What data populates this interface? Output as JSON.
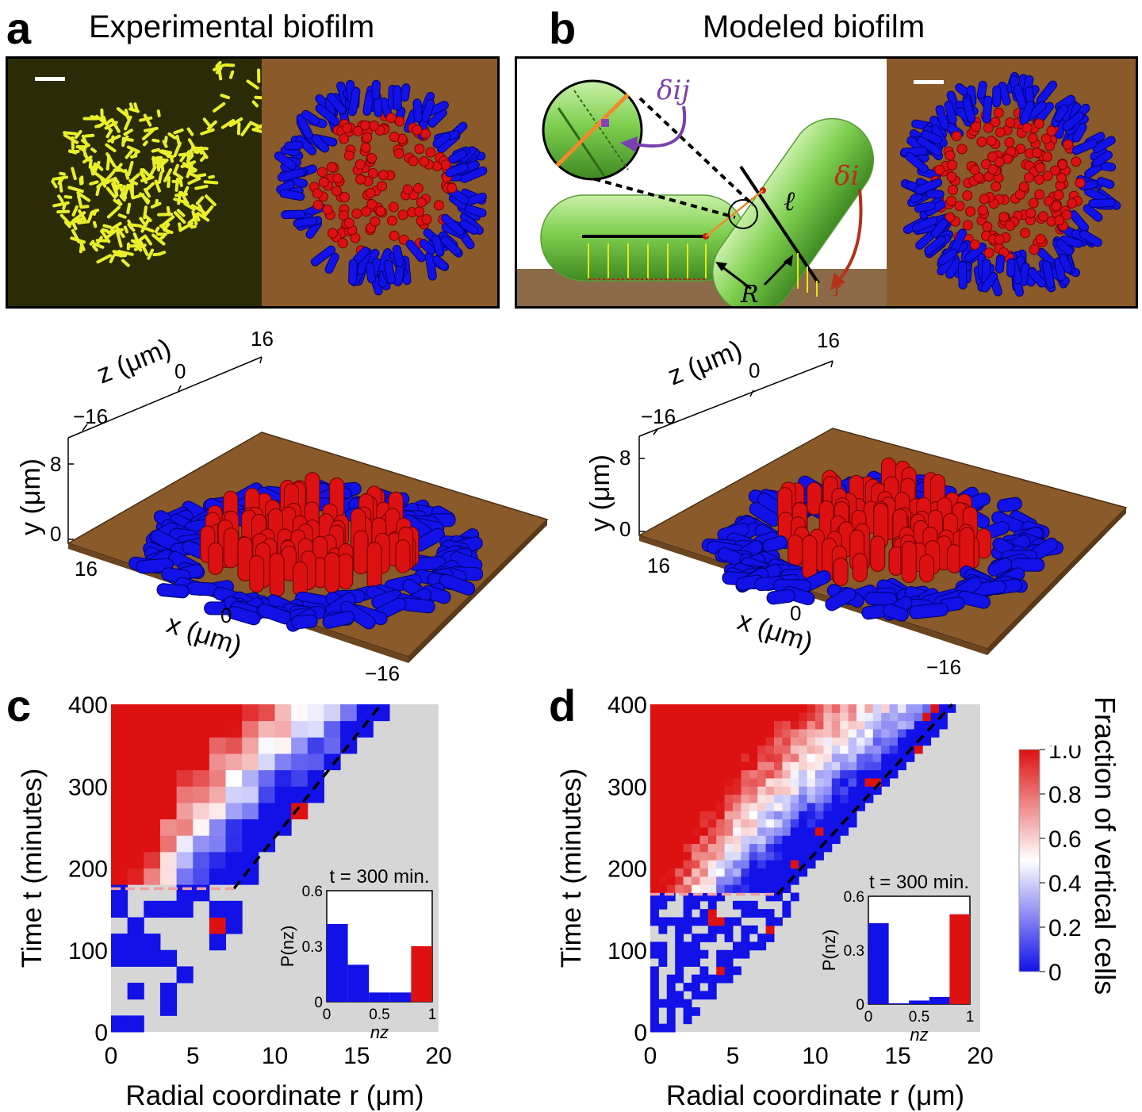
{
  "panel_a": {
    "letter": "a",
    "title": "Experimental biofilm",
    "axes": {
      "z_label": "z (μm)",
      "y_label": "y (μm)",
      "x_label": "x (μm)",
      "z_ticks": [
        "−16",
        "0",
        "16"
      ],
      "y_ticks": [
        "8",
        "0"
      ],
      "x_ticks": [
        "16",
        "0",
        "−16"
      ]
    }
  },
  "panel_b": {
    "letter": "b",
    "title": "Modeled biofilm",
    "schematic": {
      "delta_ij": "δij",
      "delta_i": "δi",
      "ell": "ℓ",
      "R": "R"
    },
    "axes": {
      "z_label": "z (μm)",
      "y_label": "y (μm)",
      "x_label": "x (μm)",
      "z_ticks": [
        "−16",
        "0",
        "16"
      ],
      "y_ticks": [
        "8",
        "0"
      ],
      "x_ticks": [
        "16",
        "0",
        "−16"
      ]
    }
  },
  "colors": {
    "red": "#dd1111",
    "blue": "#1111e8",
    "empty": "#d6d6d6",
    "substrate": "#8a5a2b",
    "cell_green": "#7ecf4f",
    "fluor_bg": "#2b2b08"
  },
  "chart_data": [
    {
      "type": "heatmap",
      "panel": "c",
      "xlabel": "Radial coordinate r (μm)",
      "ylabel": "Time t (minutes)",
      "xlim": [
        0,
        20
      ],
      "ylim": [
        0,
        400
      ],
      "x_ticks": [
        "0",
        "5",
        "10",
        "15",
        "20"
      ],
      "y_ticks": [
        "0",
        "100",
        "200",
        "300",
        "400"
      ],
      "dashed_line": [
        [
          7.5,
          175
        ],
        [
          16.5,
          400
        ]
      ],
      "threshold_time": 175,
      "inset": {
        "title": "t = 300 min.",
        "type": "bar",
        "xlabel": "nz",
        "ylabel": "P(nz)",
        "x_ticks": [
          "0",
          "0.5",
          "1"
        ],
        "y_ticks": [
          "0",
          "0.3",
          "0.6"
        ],
        "ylim": [
          0,
          0.6
        ],
        "bins": [
          0,
          0.2,
          0.4,
          0.6,
          0.8,
          1.0
        ],
        "values": [
          0.42,
          0.2,
          0.05,
          0.05,
          0.3
        ]
      }
    },
    {
      "type": "heatmap",
      "panel": "d",
      "xlabel": "Radial coordinate r (μm)",
      "ylabel": "Time t (minutes)",
      "xlim": [
        0,
        20
      ],
      "ylim": [
        0,
        400
      ],
      "x_ticks": [
        "0",
        "5",
        "10",
        "15",
        "20"
      ],
      "y_ticks": [
        "0",
        "100",
        "200",
        "300",
        "400"
      ],
      "dashed_line": [
        [
          7.7,
          168
        ],
        [
          18.3,
          400
        ]
      ],
      "threshold_time": 168,
      "inset": {
        "title": "t = 300 min.",
        "type": "bar",
        "xlabel": "nz",
        "ylabel": "P(nz)",
        "x_ticks": [
          "0",
          "0.5",
          "1"
        ],
        "y_ticks": [
          "0",
          "0.3",
          "0.6"
        ],
        "ylim": [
          0,
          0.6
        ],
        "bins": [
          0,
          0.2,
          0.4,
          0.6,
          0.8,
          1.0
        ],
        "values": [
          0.45,
          0.005,
          0.02,
          0.04,
          0.5
        ]
      }
    }
  ],
  "colorbar": {
    "label": "Fraction of vertical cells",
    "ticks": [
      "1.0",
      "0.8",
      "0.6",
      "0.4",
      "0.2",
      "0"
    ]
  }
}
